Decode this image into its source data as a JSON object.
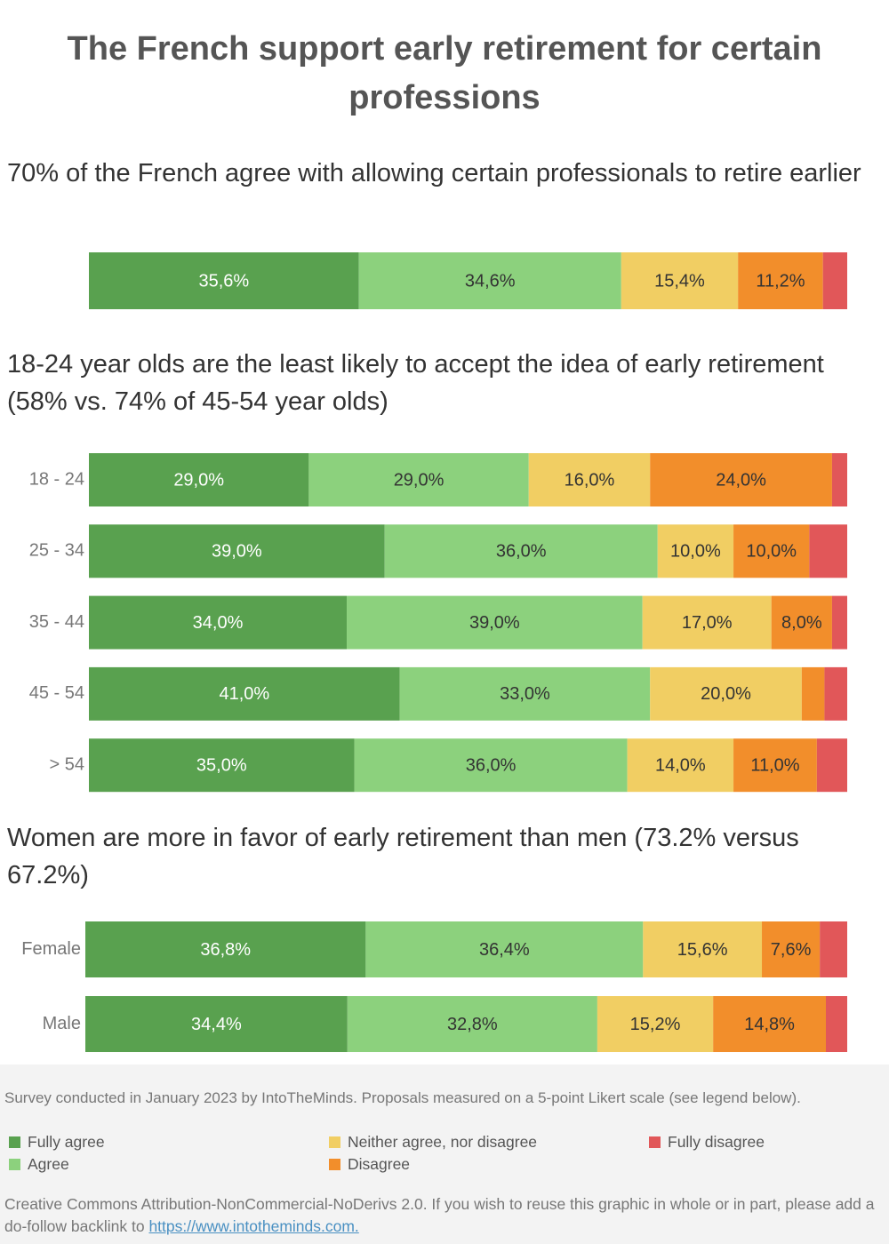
{
  "title": "The French support early retirement for certain professions",
  "note": "Survey conducted in January 2023 by IntoTheMinds. Proposals measured on a 5-point Likert scale (see legend below).",
  "license": "Creative Commons Attribution-NonCommercial-NoDerivs 2.0. If you wish to reuse this graphic in whole or in part, please add a do-follow backlink to",
  "link": "https://www.intotheminds.com.",
  "chart_data": [
    {
      "type": "bar",
      "orientation": "horizontal",
      "stacked": true,
      "title": "70% of the French agree with allowing certain professionals to retire earlier",
      "categories": [
        null
      ],
      "xlim": [
        0,
        100
      ],
      "series": [
        {
          "name": "Fully agree",
          "color": "#59a14f",
          "values": [
            35.6
          ],
          "value_labels": [
            "35,6%"
          ]
        },
        {
          "name": "Agree",
          "color": "#8cd17d",
          "values": [
            34.6
          ],
          "value_labels": [
            "34,6%"
          ]
        },
        {
          "name": "Neither agree, nor disagree",
          "color": "#f1ce63",
          "values": [
            15.4
          ],
          "value_labels": [
            "15,4%"
          ]
        },
        {
          "name": "Disagree",
          "color": "#f28e2b",
          "values": [
            11.2
          ],
          "value_labels": [
            "11,2%"
          ]
        },
        {
          "name": "Fully disagree",
          "color": "#e15759",
          "values": [
            3.2
          ],
          "value_labels": [
            null
          ]
        }
      ]
    },
    {
      "type": "bar",
      "orientation": "horizontal",
      "stacked": true,
      "title": "18-24 year olds are the least likely to accept the idea of early retirement (58% vs. 74% of 45-54 year olds)",
      "categories": [
        "18 - 24",
        "25 - 34",
        "35 - 44",
        "45 - 54",
        "> 54"
      ],
      "xlim": [
        0,
        100
      ],
      "series": [
        {
          "name": "Fully agree",
          "color": "#59a14f",
          "values": [
            29,
            39,
            34,
            41,
            35
          ],
          "value_labels": [
            "29,0%",
            "39,0%",
            "34,0%",
            "41,0%",
            "35,0%"
          ]
        },
        {
          "name": "Agree",
          "color": "#8cd17d",
          "values": [
            29,
            36,
            39,
            33,
            36
          ],
          "value_labels": [
            "29,0%",
            "36,0%",
            "39,0%",
            "33,0%",
            "36,0%"
          ]
        },
        {
          "name": "Neither agree, nor disagree",
          "color": "#f1ce63",
          "values": [
            16,
            10,
            17,
            20,
            14
          ],
          "value_labels": [
            "16,0%",
            "10,0%",
            "17,0%",
            "20,0%",
            "14,0%"
          ]
        },
        {
          "name": "Disagree",
          "color": "#f28e2b",
          "values": [
            24,
            10,
            8,
            3,
            11
          ],
          "value_labels": [
            "24,0%",
            "10,0%",
            "8,0%",
            null,
            "11,0%"
          ]
        },
        {
          "name": "Fully disagree",
          "color": "#e15759",
          "values": [
            2,
            5,
            2,
            3,
            4
          ],
          "value_labels": [
            null,
            null,
            null,
            null,
            null
          ]
        }
      ]
    },
    {
      "type": "bar",
      "orientation": "horizontal",
      "stacked": true,
      "title": "Women are more in favor of early retirement than men (73.2% versus 67.2%)",
      "categories": [
        "Female",
        "Male"
      ],
      "xlim": [
        0,
        100
      ],
      "series": [
        {
          "name": "Fully agree",
          "color": "#59a14f",
          "values": [
            36.8,
            34.4
          ],
          "value_labels": [
            "36,8%",
            "34,4%"
          ]
        },
        {
          "name": "Agree",
          "color": "#8cd17d",
          "values": [
            36.4,
            32.8
          ],
          "value_labels": [
            "36,4%",
            "32,8%"
          ]
        },
        {
          "name": "Neither agree, nor disagree",
          "color": "#f1ce63",
          "values": [
            15.6,
            15.2
          ],
          "value_labels": [
            "15,6%",
            "15,2%"
          ]
        },
        {
          "name": "Disagree",
          "color": "#f28e2b",
          "values": [
            7.6,
            14.8
          ],
          "value_labels": [
            "7,6%",
            "14,8%"
          ]
        },
        {
          "name": "Fully disagree",
          "color": "#e15759",
          "values": [
            3.6,
            2.8
          ],
          "value_labels": [
            null,
            null
          ]
        }
      ]
    }
  ]
}
